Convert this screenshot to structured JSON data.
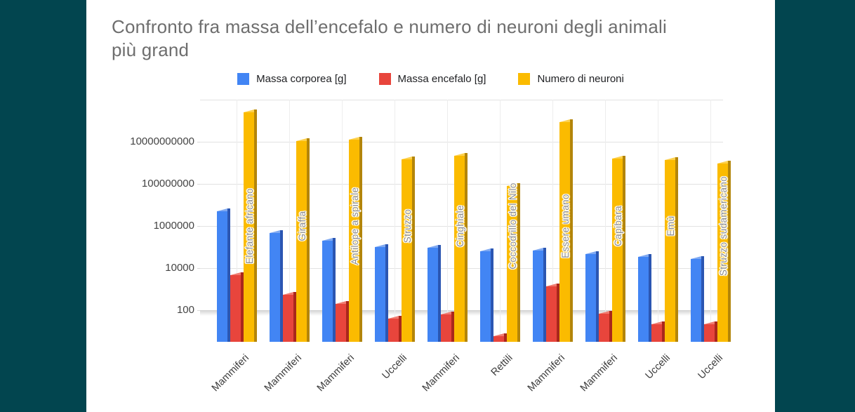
{
  "page": {
    "background_color": "#02454f",
    "slide_color": "#ffffff"
  },
  "chart_data": {
    "type": "bar",
    "title": "Confronto fra massa dell’encefalo e numero di neuroni degli animali più grand",
    "scale": "log",
    "legend_position": "top",
    "grid": true,
    "y_axis": {
      "tick_values": [
        100,
        10000,
        1000000,
        100000000,
        10000000000
      ],
      "min": 3,
      "max": 1000000000000
    },
    "categories": [
      "Mammiferi",
      "Mammiferi",
      "Mammiferi",
      "Uccelli",
      "Mammiferi",
      "Rettili",
      "Mammiferi",
      "Mammiferi",
      "Uccelli",
      "Uccelli"
    ],
    "bar_labels": [
      "Elefante africano",
      "Giraffa",
      "Antilope a spirale",
      "Struzzo",
      "Cinghiale",
      "Coccodrillo del Nilo",
      "Essere umano",
      "Capibara",
      "Emù",
      "Struzzo sudamericano"
    ],
    "series": [
      {
        "name": "Massa corporea [g]",
        "color": "#4285F4",
        "side_color": "#2B56B2",
        "cap_color": "#7FA9F2",
        "values": [
          5000000,
          470000,
          200000,
          100000,
          90000,
          65000,
          70000,
          48000,
          33000,
          28000
        ]
      },
      {
        "name": "Massa encefalo [g]",
        "color": "#E8453C",
        "side_color": "#A9271C",
        "cap_color": "#F07B70",
        "values": [
          4600,
          540,
          200,
          40,
          65,
          6,
          1400,
          70,
          22,
          21
        ]
      },
      {
        "name": "Numero di neuroni",
        "color": "#FBBB00",
        "side_color": "#B3850A",
        "cap_color": "#FDD14E",
        "values": [
          257000000000,
          10750000000,
          13000000000,
          1500000000,
          2200000000,
          80500000,
          86000000000,
          1600000000,
          1335000000,
          900000000
        ]
      }
    ]
  }
}
